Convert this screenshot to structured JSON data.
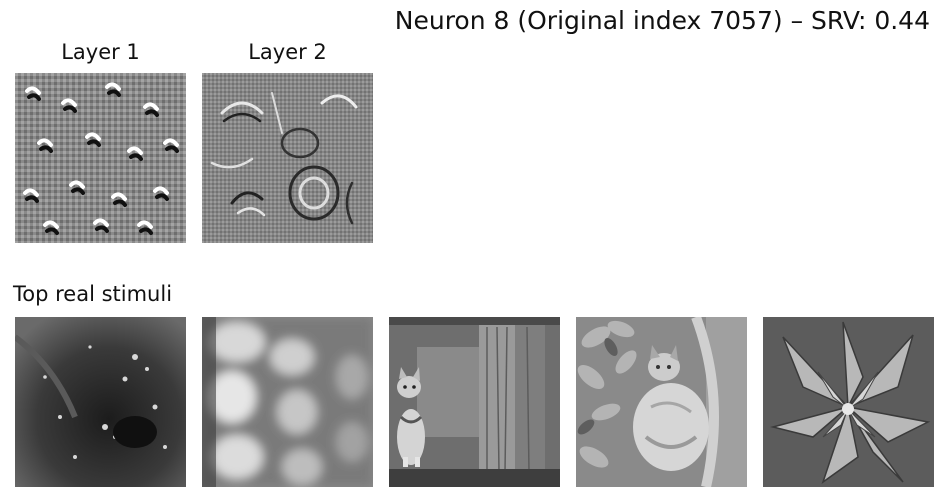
{
  "figure": {
    "title": "Neuron 8 (Original index 7057) – SRV: 0.44"
  },
  "feature_visualizations": [
    {
      "label": "Layer 1"
    },
    {
      "label": "Layer 2"
    }
  ],
  "stimuli_row": {
    "label": "Top real stimuli",
    "images": [
      "stimulus-1",
      "stimulus-2",
      "stimulus-3",
      "stimulus-4",
      "stimulus-5"
    ]
  }
}
